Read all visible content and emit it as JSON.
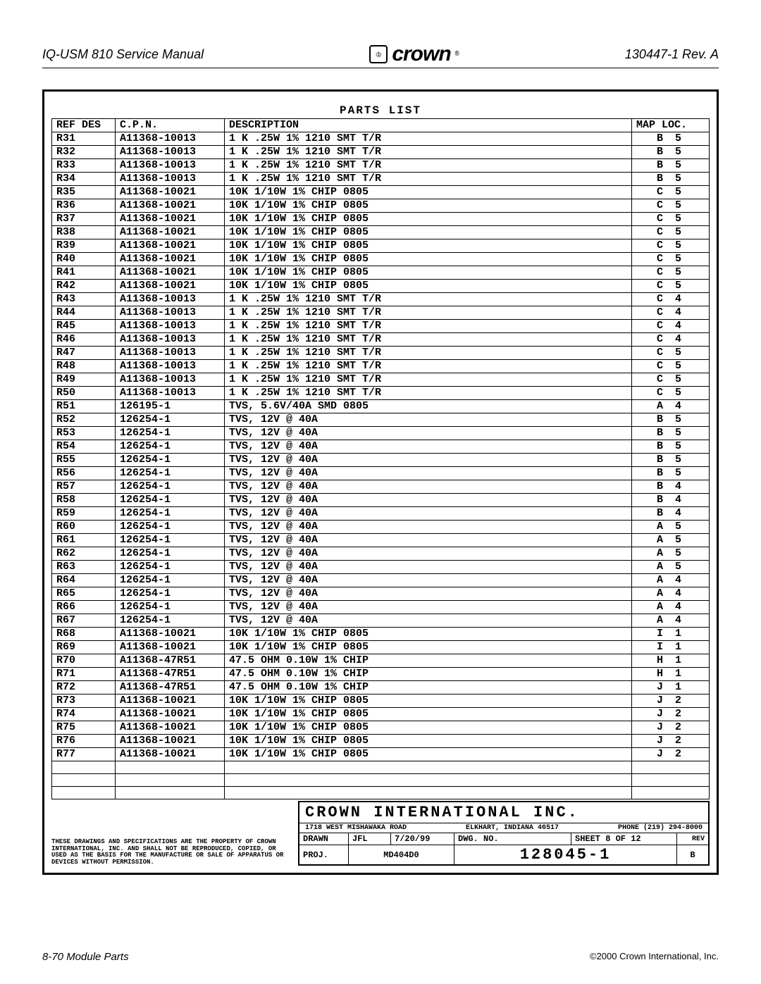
{
  "header": {
    "left": "IQ-USM 810 Service Manual",
    "logo_text": "crown",
    "right": "130447-1 Rev. A"
  },
  "parts_list": {
    "title": "PARTS LIST",
    "columns": [
      "REF DES",
      "C.P.N.",
      "DESCRIPTION",
      "MAP LOC."
    ],
    "rows": [
      [
        "R31",
        "A11368-10013",
        "1 K .25W 1% 1210 SMT T/R",
        "B 5"
      ],
      [
        "R32",
        "A11368-10013",
        "1 K .25W 1% 1210 SMT T/R",
        "B 5"
      ],
      [
        "R33",
        "A11368-10013",
        "1 K .25W 1% 1210 SMT T/R",
        "B 5"
      ],
      [
        "R34",
        "A11368-10013",
        "1 K .25W 1% 1210 SMT T/R",
        "B 5"
      ],
      [
        "R35",
        "A11368-10021",
        "10K 1/10W 1% CHIP 0805",
        "C 5"
      ],
      [
        "R36",
        "A11368-10021",
        "10K 1/10W 1% CHIP 0805",
        "C 5"
      ],
      [
        "R37",
        "A11368-10021",
        "10K 1/10W 1% CHIP 0805",
        "C 5"
      ],
      [
        "R38",
        "A11368-10021",
        "10K 1/10W 1% CHIP 0805",
        "C 5"
      ],
      [
        "R39",
        "A11368-10021",
        "10K 1/10W 1% CHIP 0805",
        "C 5"
      ],
      [
        "R40",
        "A11368-10021",
        "10K 1/10W 1% CHIP 0805",
        "C 5"
      ],
      [
        "R41",
        "A11368-10021",
        "10K 1/10W 1% CHIP 0805",
        "C 5"
      ],
      [
        "R42",
        "A11368-10021",
        "10K 1/10W 1% CHIP 0805",
        "C 5"
      ],
      [
        "R43",
        "A11368-10013",
        "1 K .25W 1% 1210 SMT T/R",
        "C 4"
      ],
      [
        "R44",
        "A11368-10013",
        "1 K .25W 1% 1210 SMT T/R",
        "C 4"
      ],
      [
        "R45",
        "A11368-10013",
        "1 K .25W 1% 1210 SMT T/R",
        "C 4"
      ],
      [
        "R46",
        "A11368-10013",
        "1 K .25W 1% 1210 SMT T/R",
        "C 4"
      ],
      [
        "R47",
        "A11368-10013",
        "1 K .25W 1% 1210 SMT T/R",
        "C 5"
      ],
      [
        "R48",
        "A11368-10013",
        "1 K .25W 1% 1210 SMT T/R",
        "C 5"
      ],
      [
        "R49",
        "A11368-10013",
        "1 K .25W 1% 1210 SMT T/R",
        "C 5"
      ],
      [
        "R50",
        "A11368-10013",
        "1 K .25W 1% 1210 SMT T/R",
        "C 5"
      ],
      [
        "R51",
        "126195-1",
        "TVS, 5.6V/40A SMD 0805",
        "A 4"
      ],
      [
        "R52",
        "126254-1",
        "TVS, 12V @ 40A",
        "B 5"
      ],
      [
        "R53",
        "126254-1",
        "TVS, 12V @ 40A",
        "B 5"
      ],
      [
        "R54",
        "126254-1",
        "TVS, 12V @ 40A",
        "B 5"
      ],
      [
        "R55",
        "126254-1",
        "TVS, 12V @ 40A",
        "B 5"
      ],
      [
        "R56",
        "126254-1",
        "TVS, 12V @ 40A",
        "B 5"
      ],
      [
        "R57",
        "126254-1",
        "TVS, 12V @ 40A",
        "B 4"
      ],
      [
        "R58",
        "126254-1",
        "TVS, 12V @ 40A",
        "B 4"
      ],
      [
        "R59",
        "126254-1",
        "TVS, 12V @ 40A",
        "B 4"
      ],
      [
        "R60",
        "126254-1",
        "TVS, 12V @ 40A",
        "A 5"
      ],
      [
        "R61",
        "126254-1",
        "TVS, 12V @ 40A",
        "A 5"
      ],
      [
        "R62",
        "126254-1",
        "TVS, 12V @ 40A",
        "A 5"
      ],
      [
        "R63",
        "126254-1",
        "TVS, 12V @ 40A",
        "A 5"
      ],
      [
        "R64",
        "126254-1",
        "TVS, 12V @ 40A",
        "A 4"
      ],
      [
        "R65",
        "126254-1",
        "TVS, 12V @ 40A",
        "A 4"
      ],
      [
        "R66",
        "126254-1",
        "TVS, 12V @ 40A",
        "A 4"
      ],
      [
        "R67",
        "126254-1",
        "TVS, 12V @ 40A",
        "A 4"
      ],
      [
        "R68",
        "A11368-10021",
        "10K 1/10W 1% CHIP 0805",
        "I 1"
      ],
      [
        "R69",
        "A11368-10021",
        "10K 1/10W 1% CHIP 0805",
        "I 1"
      ],
      [
        "R70",
        "A11368-47R51",
        "47.5 OHM 0.10W 1% CHIP",
        "H 1"
      ],
      [
        "R71",
        "A11368-47R51",
        "47.5 OHM 0.10W 1% CHIP",
        "H 1"
      ],
      [
        "R72",
        "A11368-47R51",
        "47.5 OHM 0.10W 1% CHIP",
        "J 1"
      ],
      [
        "R73",
        "A11368-10021",
        "10K 1/10W 1% CHIP 0805",
        "J 2"
      ],
      [
        "R74",
        "A11368-10021",
        "10K 1/10W 1% CHIP 0805",
        "J 2"
      ],
      [
        "R75",
        "A11368-10021",
        "10K 1/10W 1% CHIP 0805",
        "J 2"
      ],
      [
        "R76",
        "A11368-10021",
        "10K 1/10W 1% CHIP 0805",
        "J 2"
      ],
      [
        "R77",
        "A11368-10021",
        "10K 1/10W 1% CHIP 0805",
        "J 2"
      ],
      [
        "",
        "",
        "",
        ""
      ],
      [
        "",
        "",
        "",
        ""
      ],
      [
        "",
        "",
        "",
        ""
      ]
    ]
  },
  "legal": "THESE DRAWINGS AND SPECIFICATIONS ARE THE PROPERTY OF CROWN INTERNATIONAL, INC. AND SHALL NOT BE REPRODUCED, COPIED, OR USED AS THE BASIS FOR THE MANUFACTURE OR SALE OF APPARATUS OR DEVICES WITHOUT PERMISSION.",
  "title_block": {
    "company": "CROWN INTERNATIONAL INC.",
    "address": "1718 WEST MISHAWAKA ROAD",
    "city": "ELKHART, INDIANA 46517",
    "phone": "PHONE (219) 294-8000",
    "drawn_label": "DRAWN",
    "drawn_by": "JFL",
    "drawn_date": "7/20/99",
    "dwg_label": "DWG. NO.",
    "dwg_no": "128045-1",
    "sheet": "SHEET 8 OF 12",
    "rev_label": "REV",
    "rev": "B",
    "proj_label": "PROJ.",
    "proj": "MD404D0"
  },
  "footer": {
    "left": "8-70 Module Parts",
    "right": "©2000 Crown International, Inc."
  }
}
